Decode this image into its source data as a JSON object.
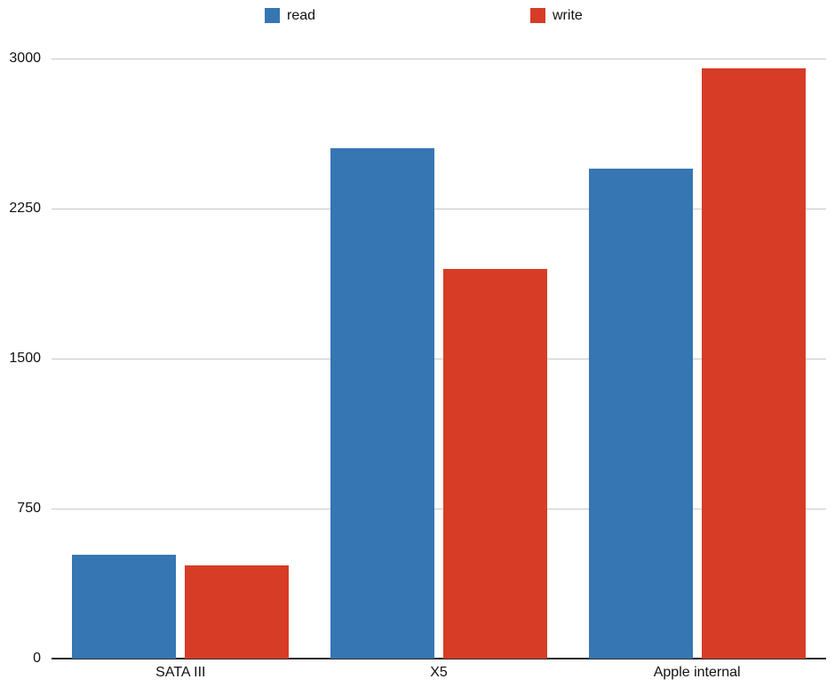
{
  "chart_data": {
    "type": "bar",
    "title": "",
    "xlabel": "",
    "ylabel": "",
    "categories": [
      "SATA III",
      "X5",
      "Apple internal"
    ],
    "series": [
      {
        "name": "read",
        "color": "#3676b3",
        "values": [
          520,
          2550,
          2450
        ]
      },
      {
        "name": "write",
        "color": "#d63c26",
        "values": [
          465,
          1950,
          2950
        ]
      }
    ],
    "ylim": [
      0,
      3000
    ],
    "yticks": [
      0,
      750,
      1500,
      2250,
      3000
    ],
    "grid": true,
    "legend_position": "top",
    "colors": {
      "gridline": "#c8c8c8",
      "axis_line": "#2b2b2b",
      "text": "#111111",
      "background": "#ffffff"
    }
  }
}
